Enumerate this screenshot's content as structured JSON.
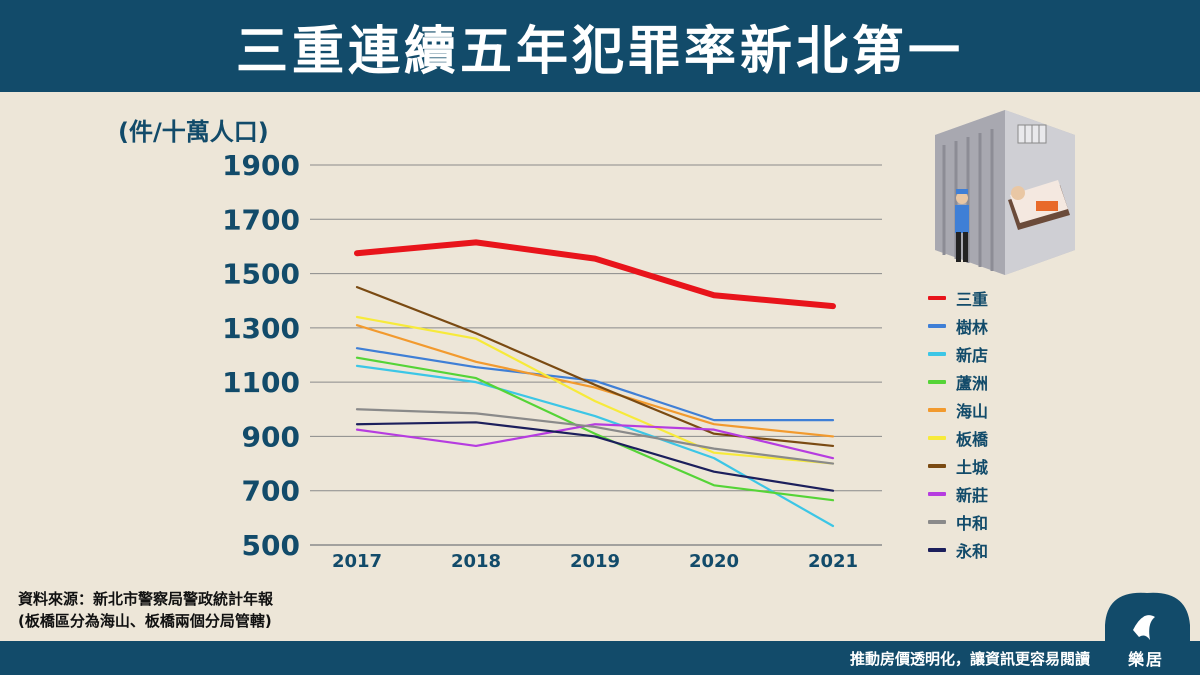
{
  "header": {
    "title": "三重連續五年犯罪率新北第一"
  },
  "chart_data": {
    "type": "line",
    "unit_label": "(件/十萬人口)",
    "categories": [
      "2017",
      "2018",
      "2019",
      "2020",
      "2021"
    ],
    "yticks": [
      "1900",
      "1700",
      "1500",
      "1300",
      "1100",
      "900",
      "700",
      "500"
    ],
    "ylim": [
      500,
      1900
    ],
    "grid": true,
    "legend_position": "right",
    "series": [
      {
        "name": "三重",
        "color": "#e8141b",
        "bold": true,
        "values": [
          1575,
          1615,
          1555,
          1420,
          1380
        ]
      },
      {
        "name": "樹林",
        "color": "#3f7fd6",
        "values": [
          1225,
          1155,
          1105,
          960,
          960
        ]
      },
      {
        "name": "新店",
        "color": "#3cc6e6",
        "values": [
          1160,
          1100,
          975,
          820,
          570
        ]
      },
      {
        "name": "蘆洲",
        "color": "#55d437",
        "values": [
          1190,
          1115,
          910,
          720,
          665
        ]
      },
      {
        "name": "海山",
        "color": "#f29a2e",
        "values": [
          1310,
          1175,
          1080,
          945,
          900
        ]
      },
      {
        "name": "板橋",
        "color": "#f7ea3a",
        "values": [
          1340,
          1260,
          1030,
          840,
          800
        ]
      },
      {
        "name": "土城",
        "color": "#7a4a12",
        "values": [
          1450,
          1280,
          1090,
          910,
          865
        ]
      },
      {
        "name": "新莊",
        "color": "#b63ce0",
        "values": [
          925,
          865,
          945,
          925,
          820
        ]
      },
      {
        "name": "中和",
        "color": "#8a8a8a",
        "values": [
          1000,
          985,
          935,
          855,
          800
        ]
      },
      {
        "name": "永和",
        "color": "#1c1f5c",
        "values": [
          945,
          952,
          900,
          770,
          700
        ]
      }
    ]
  },
  "source": {
    "line1": "資料來源：新北市警察局警政統計年報",
    "line2": "(板橋區分為海山、板橋兩個分局管轄)"
  },
  "footer": {
    "slogan": "推動房價透明化，讓資訊更容易閱讀",
    "logo_text": "樂居"
  }
}
